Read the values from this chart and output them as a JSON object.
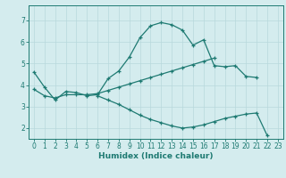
{
  "xlabel": "Humidex (Indice chaleur)",
  "bg_color": "#d4ecee",
  "grid_color": "#b8d8dc",
  "line_color": "#1e7a72",
  "xlim": [
    -0.5,
    23.5
  ],
  "ylim": [
    1.5,
    7.7
  ],
  "xticks": [
    0,
    1,
    2,
    3,
    4,
    5,
    6,
    7,
    8,
    9,
    10,
    11,
    12,
    13,
    14,
    15,
    16,
    17,
    18,
    19,
    20,
    21,
    22,
    23
  ],
  "yticks": [
    2,
    3,
    4,
    5,
    6,
    7
  ],
  "line1_x": [
    0,
    1,
    2,
    3,
    4,
    5,
    6,
    7,
    8,
    9,
    10,
    11,
    12,
    13,
    14,
    15,
    16,
    17,
    18,
    19,
    20,
    21,
    22
  ],
  "line1_y": [
    4.6,
    3.9,
    3.3,
    3.7,
    3.65,
    3.5,
    3.55,
    4.3,
    4.65,
    5.3,
    6.2,
    6.75,
    6.9,
    6.8,
    6.55,
    5.85,
    6.1,
    4.9,
    4.85,
    4.9,
    4.4,
    4.35,
    null
  ],
  "line2_x": [
    0,
    1,
    2,
    3,
    4,
    5,
    6,
    7,
    8,
    9,
    10,
    11,
    12,
    13,
    14,
    15,
    16,
    17
  ],
  "line2_y": [
    3.8,
    3.5,
    3.4,
    3.55,
    3.55,
    3.55,
    3.6,
    3.75,
    3.9,
    4.05,
    4.2,
    4.35,
    4.5,
    4.65,
    4.8,
    4.95,
    5.1,
    5.25
  ],
  "line3_x": [
    6,
    7,
    8,
    9,
    10,
    11,
    12,
    13,
    14,
    15,
    16,
    17,
    18,
    19,
    20,
    21,
    22
  ],
  "line3_y": [
    3.5,
    3.3,
    3.1,
    2.85,
    2.6,
    2.4,
    2.25,
    2.1,
    2.0,
    2.05,
    2.15,
    2.3,
    2.45,
    2.55,
    2.65,
    2.7,
    1.65
  ]
}
